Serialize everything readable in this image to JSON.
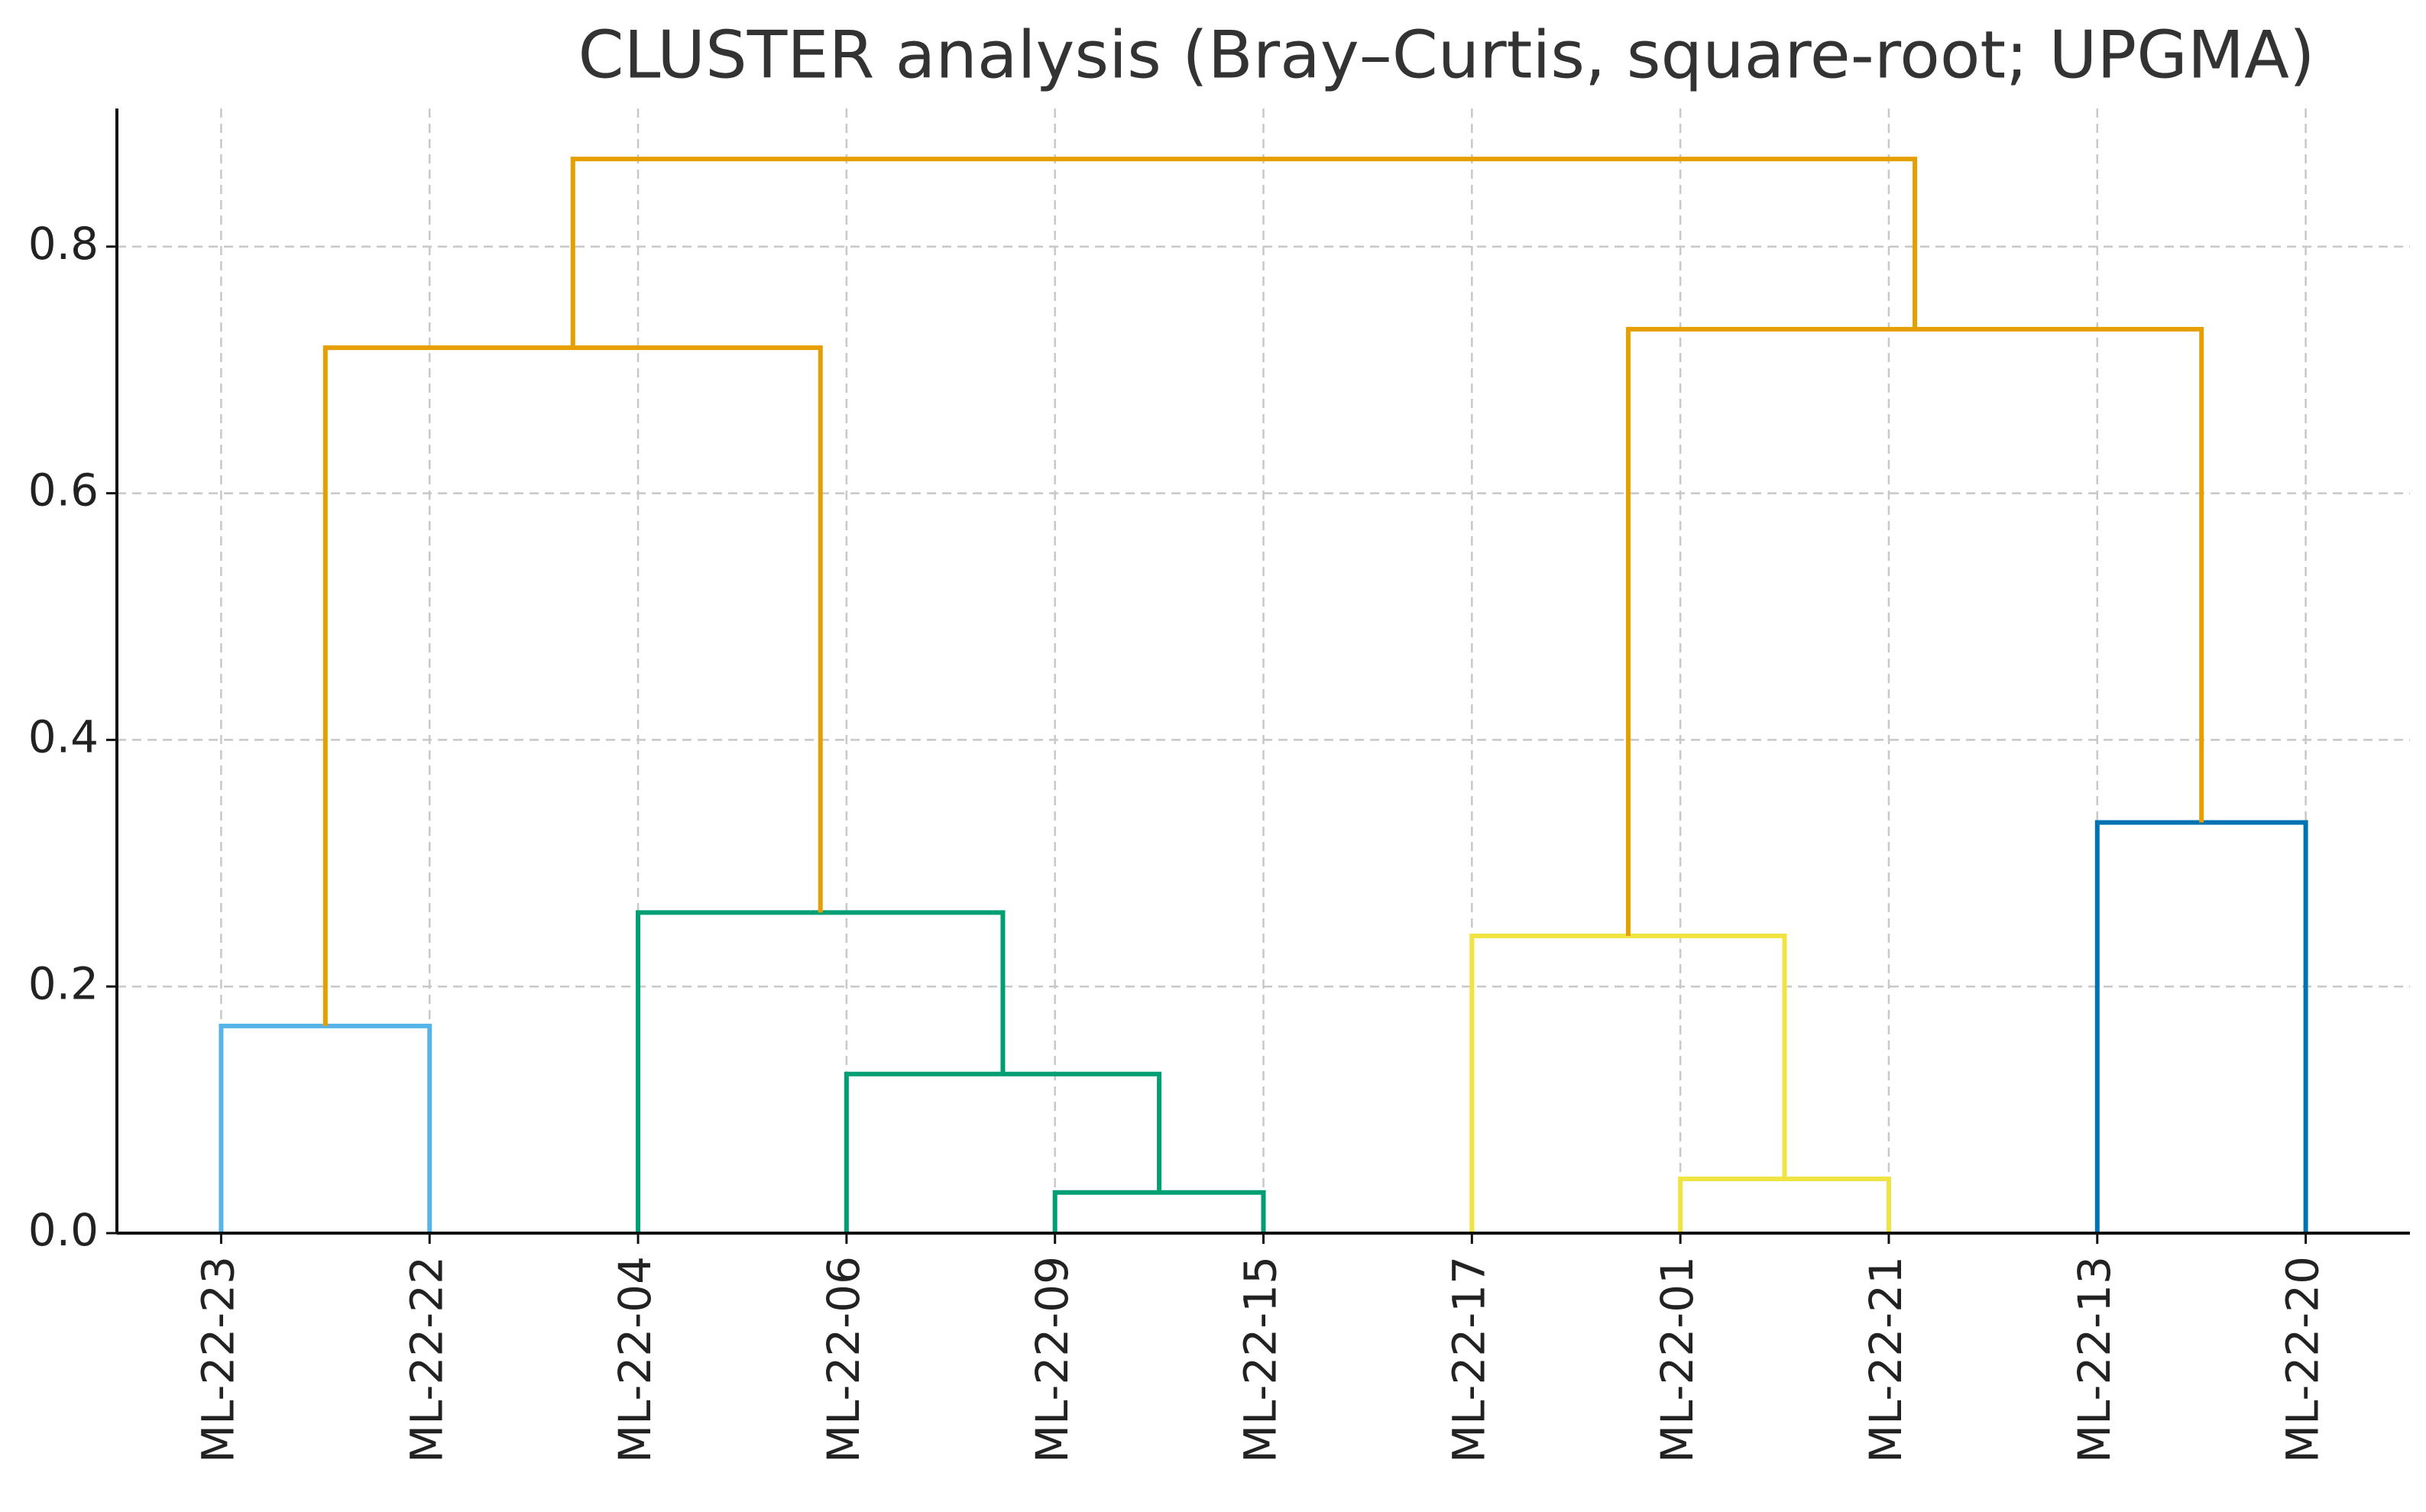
{
  "chart_data": {
    "type": "dendrogram",
    "title": "CLUSTER analysis (Bray–Curtis, square-root; UPGMA)",
    "ylim": [
      0,
      0.912
    ],
    "yticks": [
      {
        "value": 0,
        "label": "0.0"
      },
      0.2,
      0.4,
      0.6,
      0.8
    ],
    "grid": true,
    "tree": {
      "height": 0.871,
      "color": "#e69f00",
      "children": [
        {
          "height": 0.718,
          "color": "#e69f00",
          "children": [
            {
              "height": 0.168,
              "color": "#56b4e9",
              "children": [
                {
                  "label": "ML-22-23"
                },
                {
                  "label": "ML-22-22"
                }
              ]
            },
            {
              "height": 0.26,
              "color": "#009e73",
              "children": [
                {
                  "label": "ML-22-04"
                },
                {
                  "height": 0.129,
                  "color": "#009e73",
                  "children": [
                    {
                      "label": "ML-22-06"
                    },
                    {
                      "height": 0.033,
                      "color": "#009e73",
                      "children": [
                        {
                          "label": "ML-22-09"
                        },
                        {
                          "label": "ML-22-15"
                        }
                      ]
                    }
                  ]
                }
              ]
            }
          ]
        },
        {
          "height": 0.733,
          "color": "#e69f00",
          "children": [
            {
              "height": 0.241,
              "color": "#f0e442",
              "children": [
                {
                  "label": "ML-22-17"
                },
                {
                  "height": 0.044,
                  "color": "#f0e442",
                  "children": [
                    {
                      "label": "ML-22-01"
                    },
                    {
                      "label": "ML-22-21"
                    }
                  ]
                }
              ]
            },
            {
              "height": 0.333,
              "color": "#0072b2",
              "children": [
                {
                  "label": "ML-22-13"
                },
                {
                  "label": "ML-22-20"
                }
              ]
            }
          ]
        }
      ]
    }
  }
}
